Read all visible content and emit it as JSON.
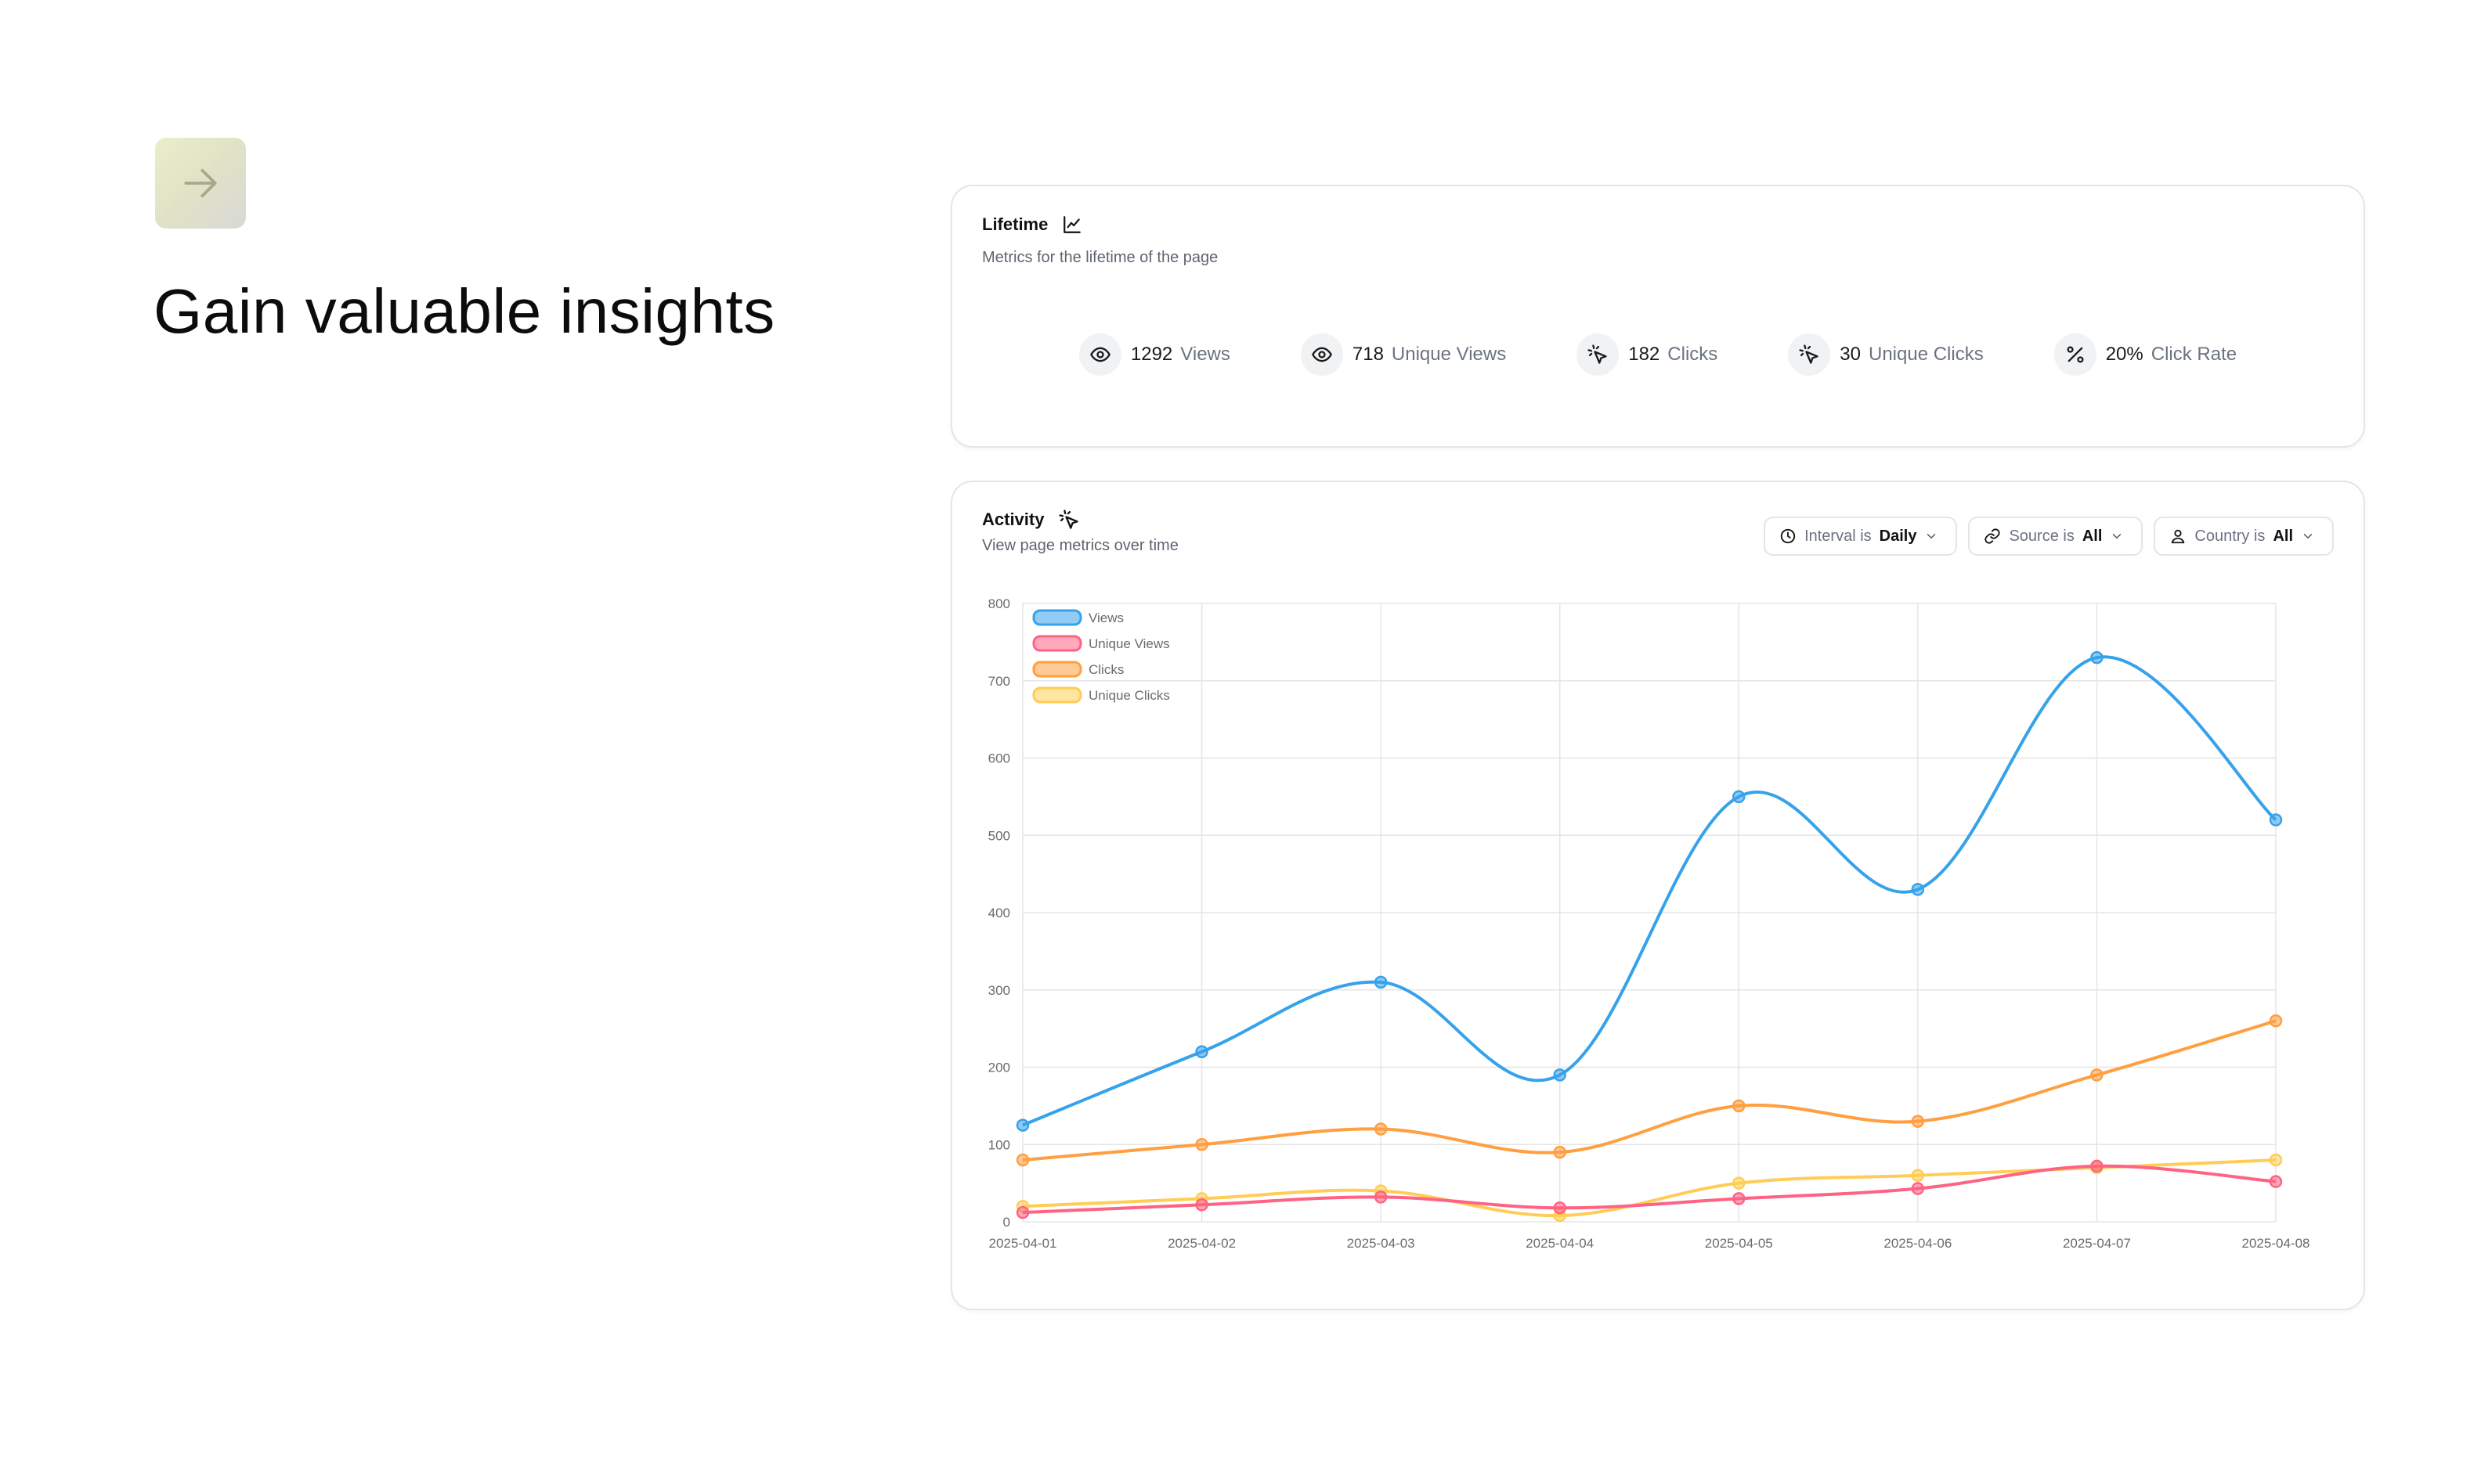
{
  "hero": {
    "icon": "arrow-right-icon",
    "title": "Gain valuable insights"
  },
  "lifetime": {
    "title": "Lifetime",
    "title_icon": "line-chart-icon",
    "subtitle": "Metrics for the lifetime of the page",
    "metrics": [
      {
        "icon": "eye-icon",
        "value": "1292",
        "label": "Views"
      },
      {
        "icon": "eye-icon",
        "value": "718",
        "label": "Unique Views"
      },
      {
        "icon": "pointer-click-icon",
        "value": "182",
        "label": "Clicks"
      },
      {
        "icon": "pointer-click-icon",
        "value": "30",
        "label": "Unique Clicks"
      },
      {
        "icon": "percent-icon",
        "value": "20%",
        "label": "Click Rate"
      }
    ]
  },
  "activity": {
    "title": "Activity",
    "title_icon": "pointer-click-icon",
    "subtitle": "View page metrics over time",
    "filters": [
      {
        "icon": "clock-icon",
        "prefix": "Interval is",
        "value": "Daily"
      },
      {
        "icon": "link-icon",
        "prefix": "Source is",
        "value": "All"
      },
      {
        "icon": "user-pin-icon",
        "prefix": "Country is",
        "value": "All"
      }
    ]
  },
  "colors": {
    "views": "#36a2eb",
    "unique_views": "#ff6384",
    "clicks": "#ff9f40",
    "unique_clicks": "#ffcd56",
    "grid": "#e5e5e5",
    "tick": "#6b6b6b"
  },
  "chart_data": {
    "type": "line",
    "x": [
      "2025-04-01",
      "2025-04-02",
      "2025-04-03",
      "2025-04-04",
      "2025-04-05",
      "2025-04-06",
      "2025-04-07",
      "2025-04-08"
    ],
    "ylim": [
      0,
      800
    ],
    "yticks": [
      0,
      100,
      200,
      300,
      400,
      500,
      600,
      700,
      800
    ],
    "grid": true,
    "legend": "top-left",
    "series": [
      {
        "name": "Views",
        "values": [
          125,
          220,
          310,
          190,
          550,
          430,
          730,
          520
        ]
      },
      {
        "name": "Unique Views",
        "values": [
          12,
          22,
          32,
          18,
          30,
          43,
          72,
          52
        ]
      },
      {
        "name": "Clicks",
        "values": [
          80,
          100,
          120,
          90,
          150,
          130,
          190,
          260
        ]
      },
      {
        "name": "Unique Clicks",
        "values": [
          20,
          30,
          40,
          8,
          50,
          60,
          70,
          80
        ]
      }
    ]
  }
}
